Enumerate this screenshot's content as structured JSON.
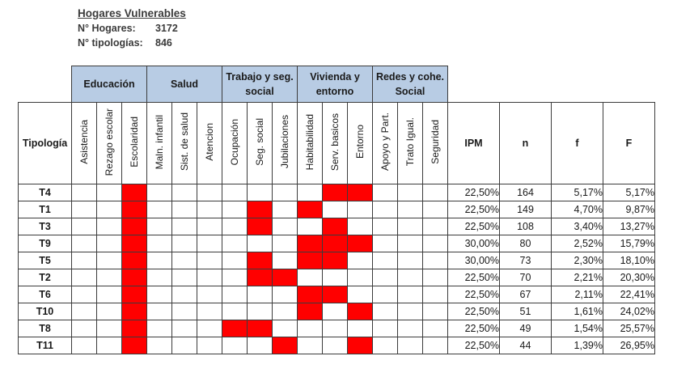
{
  "header": {
    "title": "Hogares Vulnerables",
    "hogares_label": "N° Hogares:",
    "hogares_value": "3172",
    "tipologias_label": "N° tipologías:",
    "tipologias_value": "846"
  },
  "table": {
    "row_header": "Tipología",
    "groups": [
      {
        "label": "Educación",
        "indicators": [
          "Asistencia",
          "Rezago escolar",
          "Escolaridad"
        ]
      },
      {
        "label": "Salud",
        "indicators": [
          "Maln. infantil",
          "Sist. de salud",
          "Atencion"
        ]
      },
      {
        "label": "Trabajo y seg. social",
        "indicators": [
          "Ocupación",
          "Seg. social",
          "Jubilaciones"
        ]
      },
      {
        "label": "Vivienda y entorno",
        "indicators": [
          "Habitabilidad",
          "Serv. basicos",
          "Entorno"
        ]
      },
      {
        "label": "Redes y cohe. Social",
        "indicators": [
          "Apoyo y Part.",
          "Trato Igual.",
          "Seguridad"
        ]
      }
    ],
    "stat_headers": [
      "IPM",
      "n",
      "f",
      "F"
    ],
    "highlight_color": "#ff0000",
    "rows": [
      {
        "label": "T4",
        "flags": [
          0,
          0,
          1,
          0,
          0,
          0,
          0,
          0,
          0,
          0,
          1,
          1,
          0,
          0,
          0
        ],
        "ipm": "22,50%",
        "n": "164",
        "f": "5,17%",
        "F": "5,17%"
      },
      {
        "label": "T1",
        "flags": [
          0,
          0,
          1,
          0,
          0,
          0,
          0,
          1,
          0,
          1,
          0,
          0,
          0,
          0,
          0
        ],
        "ipm": "22,50%",
        "n": "149",
        "f": "4,70%",
        "F": "9,87%"
      },
      {
        "label": "T3",
        "flags": [
          0,
          0,
          1,
          0,
          0,
          0,
          0,
          1,
          0,
          0,
          1,
          0,
          0,
          0,
          0
        ],
        "ipm": "22,50%",
        "n": "108",
        "f": "3,40%",
        "F": "13,27%"
      },
      {
        "label": "T9",
        "flags": [
          0,
          0,
          1,
          0,
          0,
          0,
          0,
          0,
          0,
          1,
          1,
          1,
          0,
          0,
          0
        ],
        "ipm": "30,00%",
        "n": "80",
        "f": "2,52%",
        "F": "15,79%"
      },
      {
        "label": "T5",
        "flags": [
          0,
          0,
          1,
          0,
          0,
          0,
          0,
          1,
          0,
          1,
          1,
          0,
          0,
          0,
          0
        ],
        "ipm": "30,00%",
        "n": "73",
        "f": "2,30%",
        "F": "18,10%"
      },
      {
        "label": "T2",
        "flags": [
          0,
          0,
          1,
          0,
          0,
          0,
          0,
          1,
          1,
          0,
          0,
          0,
          0,
          0,
          0
        ],
        "ipm": "22,50%",
        "n": "70",
        "f": "2,21%",
        "F": "20,30%"
      },
      {
        "label": "T6",
        "flags": [
          0,
          0,
          1,
          0,
          0,
          0,
          0,
          0,
          0,
          1,
          1,
          0,
          0,
          0,
          0
        ],
        "ipm": "22,50%",
        "n": "67",
        "f": "2,11%",
        "F": "22,41%"
      },
      {
        "label": "T10",
        "flags": [
          0,
          0,
          1,
          0,
          0,
          0,
          0,
          0,
          0,
          1,
          0,
          1,
          0,
          0,
          0
        ],
        "ipm": "22,50%",
        "n": "51",
        "f": "1,61%",
        "F": "24,02%"
      },
      {
        "label": "T8",
        "flags": [
          0,
          0,
          1,
          0,
          0,
          0,
          1,
          1,
          0,
          0,
          0,
          0,
          0,
          0,
          0
        ],
        "ipm": "22,50%",
        "n": "49",
        "f": "1,54%",
        "F": "25,57%"
      },
      {
        "label": "T11",
        "flags": [
          0,
          0,
          1,
          0,
          0,
          0,
          0,
          0,
          1,
          0,
          0,
          1,
          0,
          0,
          0
        ],
        "ipm": "22,50%",
        "n": "44",
        "f": "1,39%",
        "F": "26,95%"
      }
    ]
  }
}
